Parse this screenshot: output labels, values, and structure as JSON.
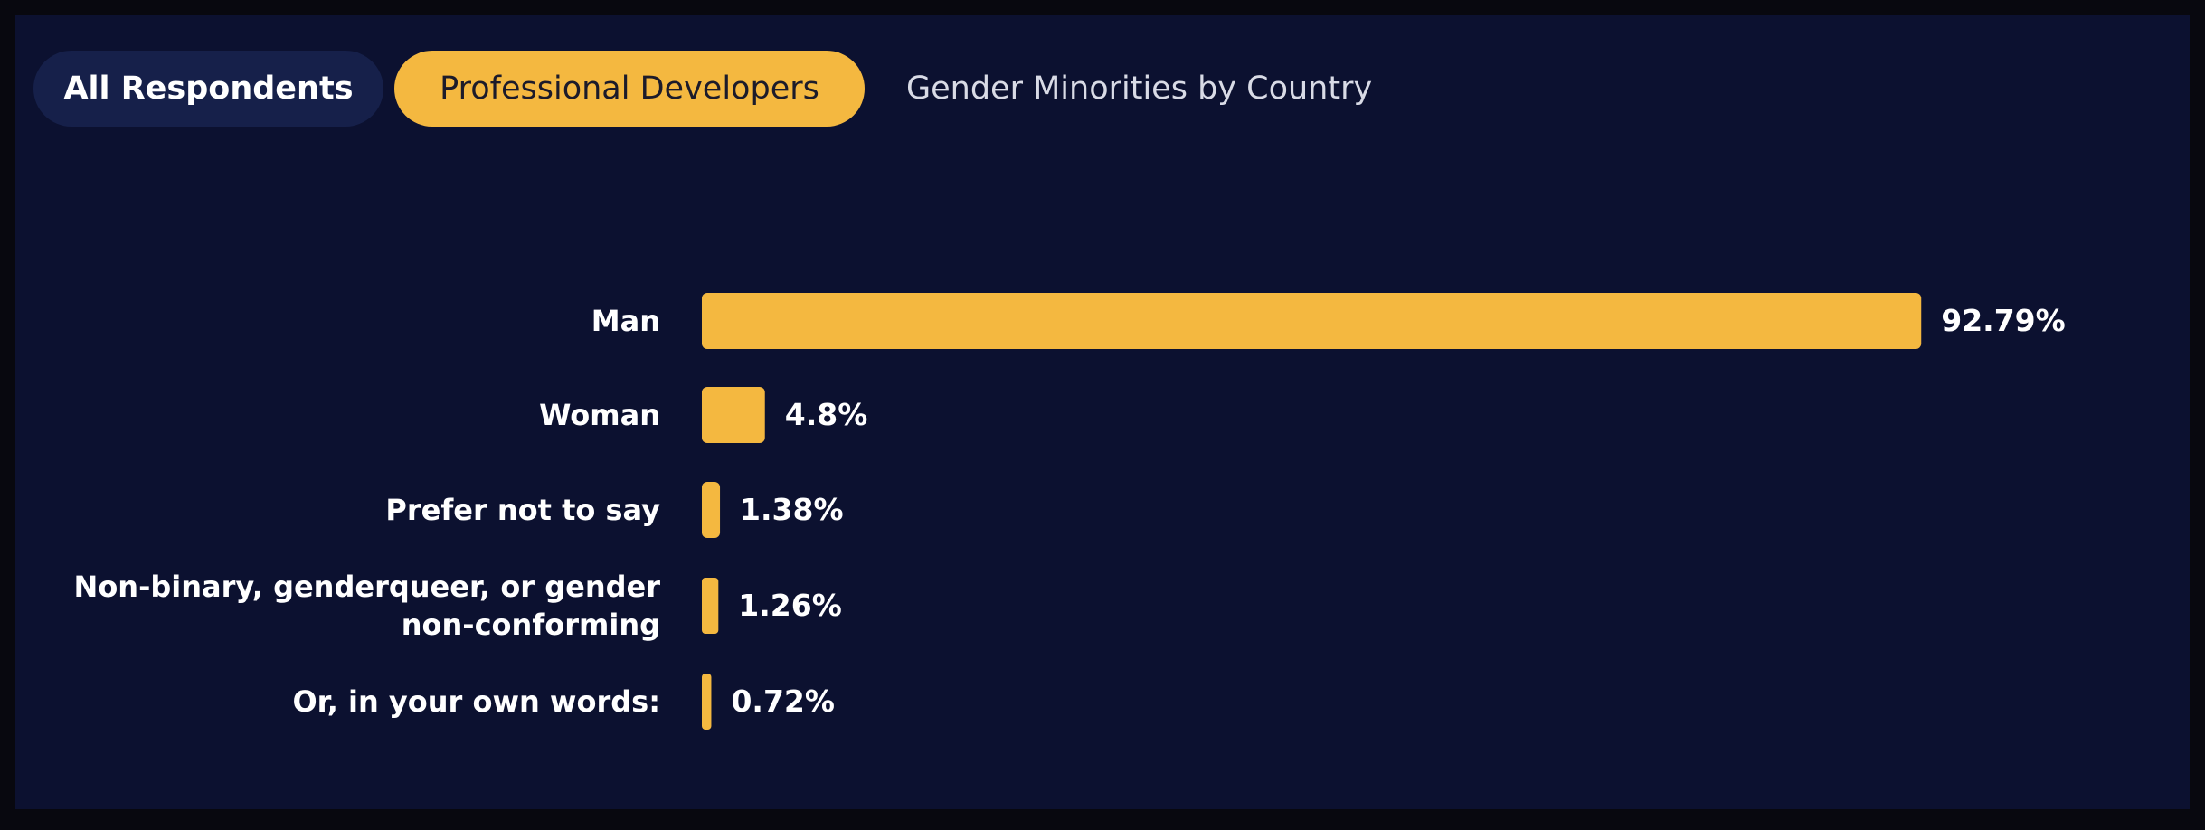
{
  "tabs": [
    {
      "label": "All Respondents"
    },
    {
      "label": "Professional Developers"
    },
    {
      "label": "Gender Minorities by Country"
    }
  ],
  "colors": {
    "background": "#0c1130",
    "bar": "#f4b840",
    "active_tab": "#f4b840",
    "inactive_tab": "#16204a"
  },
  "chart_data": {
    "type": "bar",
    "orientation": "horizontal",
    "categories": [
      "Man",
      "Woman",
      "Prefer not to say",
      "Non-binary, genderqueer, or gender non-conforming",
      "Or, in your own words:"
    ],
    "category_lines": [
      [
        "Man"
      ],
      [
        "Woman"
      ],
      [
        "Prefer not to say"
      ],
      [
        "Non-binary, genderqueer, or gender",
        "non-conforming"
      ],
      [
        "Or, in your own words:"
      ]
    ],
    "values": [
      92.79,
      4.8,
      1.38,
      1.26,
      0.72
    ],
    "value_labels": [
      "92.79%",
      "4.8%",
      "1.38%",
      "1.26%",
      "0.72%"
    ],
    "title": "",
    "xlabel": "",
    "ylabel": "",
    "grid": false,
    "legend": "none"
  }
}
